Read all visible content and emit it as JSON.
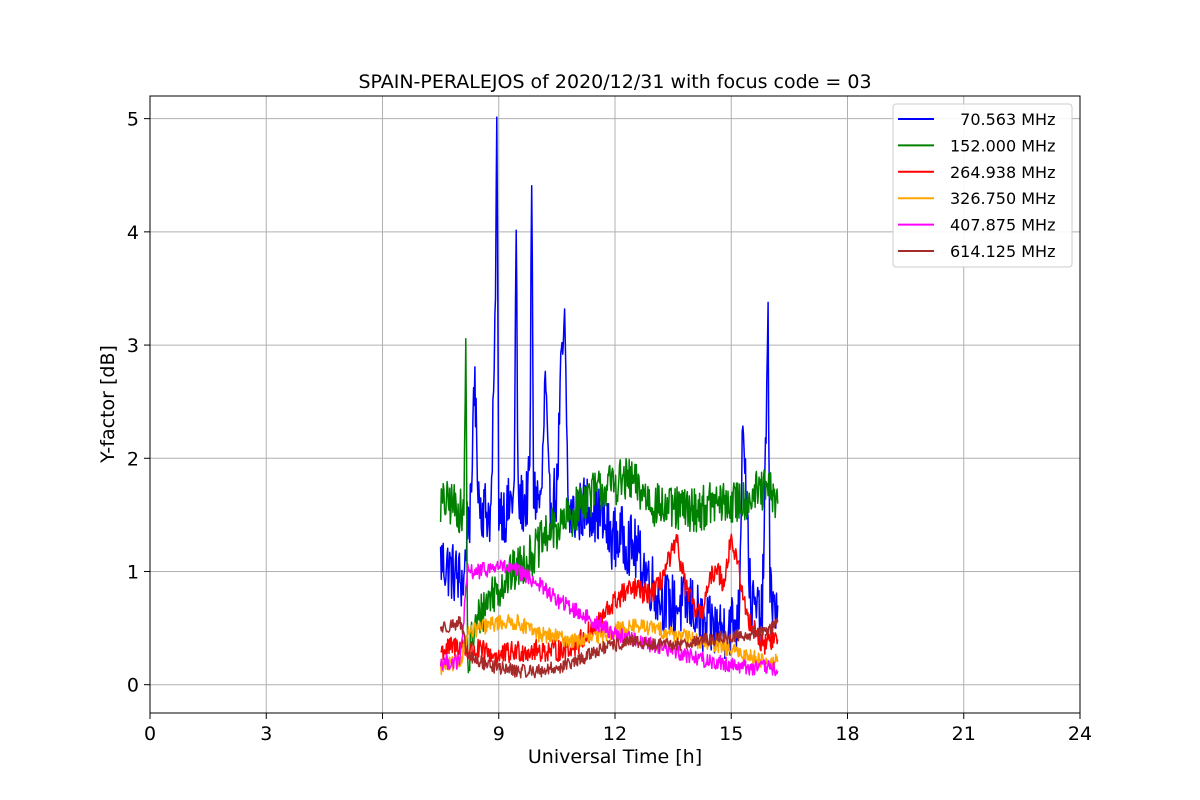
{
  "chart_data": {
    "type": "line",
    "title": "SPAIN-PERALEJOS of 2020/12/31 with focus code = 03",
    "xlabel": "Universal Time [h]",
    "ylabel": "Y-factor [dB]",
    "xlim": [
      0,
      24
    ],
    "ylim": [
      -0.25,
      5.2
    ],
    "xticks": [
      0,
      3,
      6,
      9,
      12,
      15,
      18,
      21,
      24
    ],
    "yticks": [
      0,
      1,
      2,
      3,
      4,
      5
    ],
    "grid": true,
    "legend_position": "top-right",
    "series": [
      {
        "name": "  70.563 MHz",
        "color": "#0000ff",
        "noise": 0.28,
        "x": [
          7.5,
          7.8,
          8.1,
          8.2,
          8.3,
          8.35,
          8.5,
          8.8,
          8.9,
          8.95,
          9.0,
          9.2,
          9.4,
          9.45,
          9.5,
          9.7,
          9.8,
          9.85,
          9.9,
          10.1,
          10.2,
          10.3,
          10.5,
          10.6,
          10.7,
          10.8,
          11.0,
          11.3,
          11.6,
          11.9,
          12.2,
          12.5,
          12.8,
          13.1,
          13.4,
          13.7,
          14.0,
          14.3,
          14.6,
          14.9,
          15.2,
          15.3,
          15.5,
          15.8,
          15.95,
          16.0,
          16.1,
          16.2
        ],
        "y": [
          1.1,
          1.0,
          0.9,
          1.5,
          1.5,
          2.8,
          1.6,
          1.5,
          3.0,
          4.93,
          1.6,
          1.5,
          1.7,
          4.08,
          1.6,
          1.6,
          1.8,
          4.47,
          1.7,
          1.6,
          2.7,
          1.6,
          1.7,
          2.7,
          3.15,
          1.5,
          1.5,
          1.6,
          1.5,
          1.3,
          1.3,
          1.2,
          1.0,
          0.8,
          0.7,
          0.7,
          0.7,
          0.5,
          0.5,
          0.5,
          0.6,
          2.48,
          0.7,
          0.6,
          3.1,
          1.0,
          0.6,
          0.7
        ]
      },
      {
        "name": "152.000 MHz",
        "color": "#008000",
        "noise": 0.2,
        "x": [
          7.5,
          7.8,
          8.1,
          8.15,
          8.2,
          8.3,
          8.5,
          8.8,
          9.1,
          9.4,
          9.7,
          10.0,
          10.3,
          10.6,
          10.9,
          11.2,
          11.5,
          11.8,
          12.1,
          12.4,
          12.7,
          13.0,
          13.3,
          13.6,
          13.9,
          14.2,
          14.5,
          14.8,
          15.1,
          15.4,
          15.7,
          16.0,
          16.2
        ],
        "y": [
          1.6,
          1.6,
          1.5,
          3.05,
          0.1,
          0.4,
          0.6,
          0.8,
          0.9,
          1.0,
          1.1,
          1.2,
          1.35,
          1.4,
          1.5,
          1.65,
          1.7,
          1.75,
          1.8,
          1.8,
          1.7,
          1.6,
          1.55,
          1.55,
          1.55,
          1.55,
          1.6,
          1.6,
          1.6,
          1.65,
          1.7,
          1.7,
          1.6
        ]
      },
      {
        "name": "264.938 MHz",
        "color": "#ff0000",
        "noise": 0.1,
        "x": [
          7.5,
          8.0,
          8.2,
          8.5,
          9.0,
          9.5,
          10.0,
          10.5,
          11.0,
          11.3,
          11.6,
          11.9,
          12.2,
          12.5,
          12.8,
          13.1,
          13.4,
          13.6,
          13.8,
          14.0,
          14.2,
          14.4,
          14.6,
          14.8,
          15.0,
          15.2,
          15.4,
          15.6,
          15.8,
          16.0,
          16.2
        ],
        "y": [
          0.3,
          0.35,
          0.3,
          0.3,
          0.25,
          0.3,
          0.3,
          0.3,
          0.35,
          0.45,
          0.55,
          0.7,
          0.8,
          0.85,
          0.8,
          0.85,
          1.1,
          1.25,
          0.9,
          0.7,
          0.6,
          0.85,
          1.05,
          0.9,
          1.3,
          1.0,
          0.6,
          0.5,
          0.35,
          0.4,
          0.4
        ]
      },
      {
        "name": "326.750 MHz",
        "color": "#ffa500",
        "noise": 0.07,
        "x": [
          7.5,
          8.0,
          8.2,
          8.5,
          9.0,
          9.5,
          10.0,
          10.5,
          11.0,
          11.5,
          12.0,
          12.5,
          13.0,
          13.5,
          14.0,
          14.5,
          15.0,
          15.5,
          16.0,
          16.2
        ],
        "y": [
          0.15,
          0.2,
          0.45,
          0.5,
          0.55,
          0.55,
          0.45,
          0.42,
          0.38,
          0.42,
          0.48,
          0.52,
          0.5,
          0.45,
          0.4,
          0.35,
          0.3,
          0.25,
          0.2,
          0.2
        ]
      },
      {
        "name": "407.875 MHz",
        "color": "#ff00ff",
        "noise": 0.07,
        "x": [
          7.5,
          8.0,
          8.2,
          8.5,
          9.0,
          9.5,
          10.0,
          10.5,
          11.0,
          11.5,
          12.0,
          12.5,
          13.0,
          13.5,
          14.0,
          14.5,
          15.0,
          15.5,
          16.0,
          16.2
        ],
        "y": [
          0.2,
          0.2,
          1.0,
          1.0,
          1.05,
          1.0,
          0.9,
          0.75,
          0.65,
          0.55,
          0.45,
          0.4,
          0.35,
          0.3,
          0.25,
          0.2,
          0.18,
          0.15,
          0.15,
          0.12
        ]
      },
      {
        "name": "614.125 MHz",
        "color": "#a52a2a",
        "noise": 0.06,
        "x": [
          7.5,
          8.0,
          8.2,
          8.5,
          9.0,
          9.5,
          10.0,
          10.5,
          11.0,
          11.5,
          12.0,
          12.5,
          13.0,
          13.5,
          14.0,
          14.5,
          15.0,
          15.5,
          16.0,
          16.2
        ],
        "y": [
          0.5,
          0.55,
          0.25,
          0.2,
          0.15,
          0.12,
          0.12,
          0.15,
          0.2,
          0.3,
          0.35,
          0.38,
          0.35,
          0.35,
          0.38,
          0.4,
          0.42,
          0.45,
          0.5,
          0.55
        ]
      }
    ]
  }
}
